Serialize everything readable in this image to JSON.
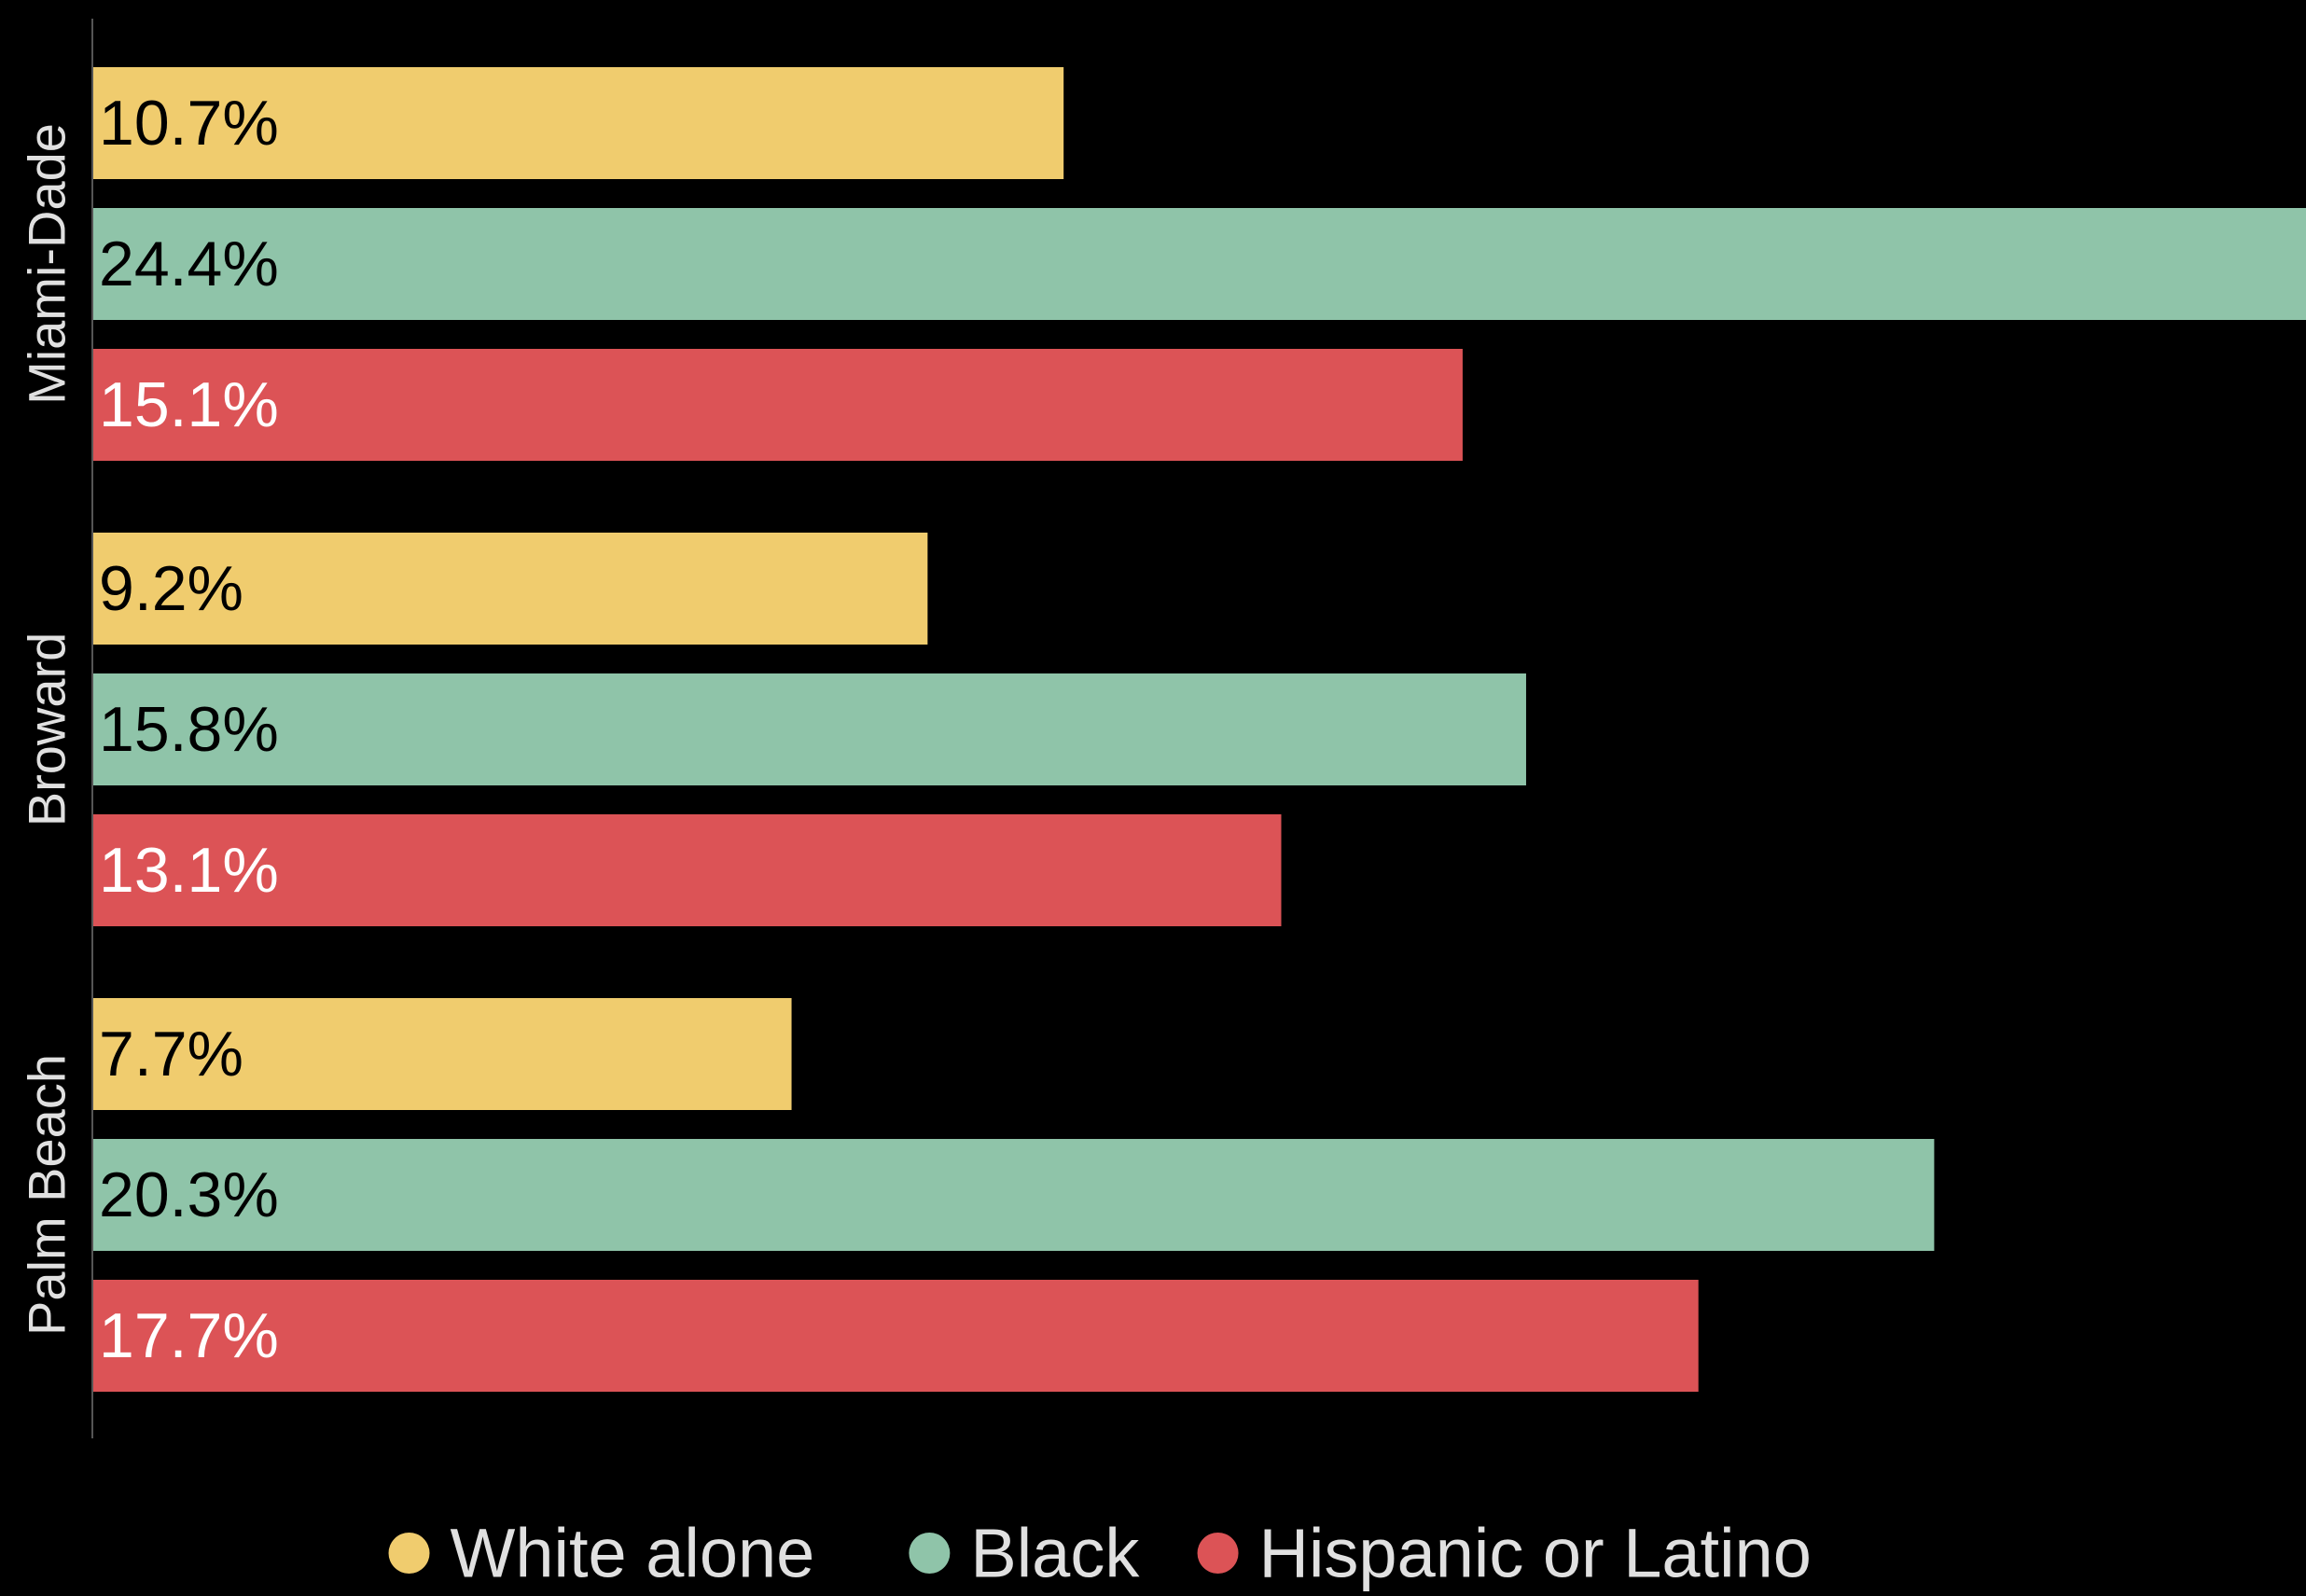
{
  "chart_data": {
    "type": "bar",
    "orientation": "horizontal",
    "categories": [
      "Miami-Dade",
      "Broward",
      "Palm Beach"
    ],
    "series": [
      {
        "name": "White alone",
        "values": [
          10.7,
          9.2,
          7.7
        ],
        "labels": [
          "10.7%",
          "9.2%",
          "7.7%"
        ],
        "color": "#f0cc6e",
        "label_color": "#000000"
      },
      {
        "name": "Black",
        "values": [
          24.4,
          15.8,
          20.3
        ],
        "labels": [
          "24.4%",
          "15.8%",
          "20.3%"
        ],
        "color": "#8fc4a9",
        "label_color": "#000000"
      },
      {
        "name": "Hispanic or Latino",
        "values": [
          15.1,
          13.1,
          17.7
        ],
        "labels": [
          "15.1%",
          "13.1%",
          "17.7%"
        ],
        "color": "#dc5356",
        "label_color": "#ffffff"
      }
    ],
    "value_unit": "%",
    "xlim": [
      0,
      24.4
    ],
    "grid": false,
    "legend_position": "bottom",
    "title": "",
    "xlabel": "",
    "ylabel": ""
  },
  "theme": {
    "background": "#000000",
    "axis_color": "#555555",
    "category_label_color": "#e0e0e0",
    "legend_text_color": "#e0e0e0"
  }
}
